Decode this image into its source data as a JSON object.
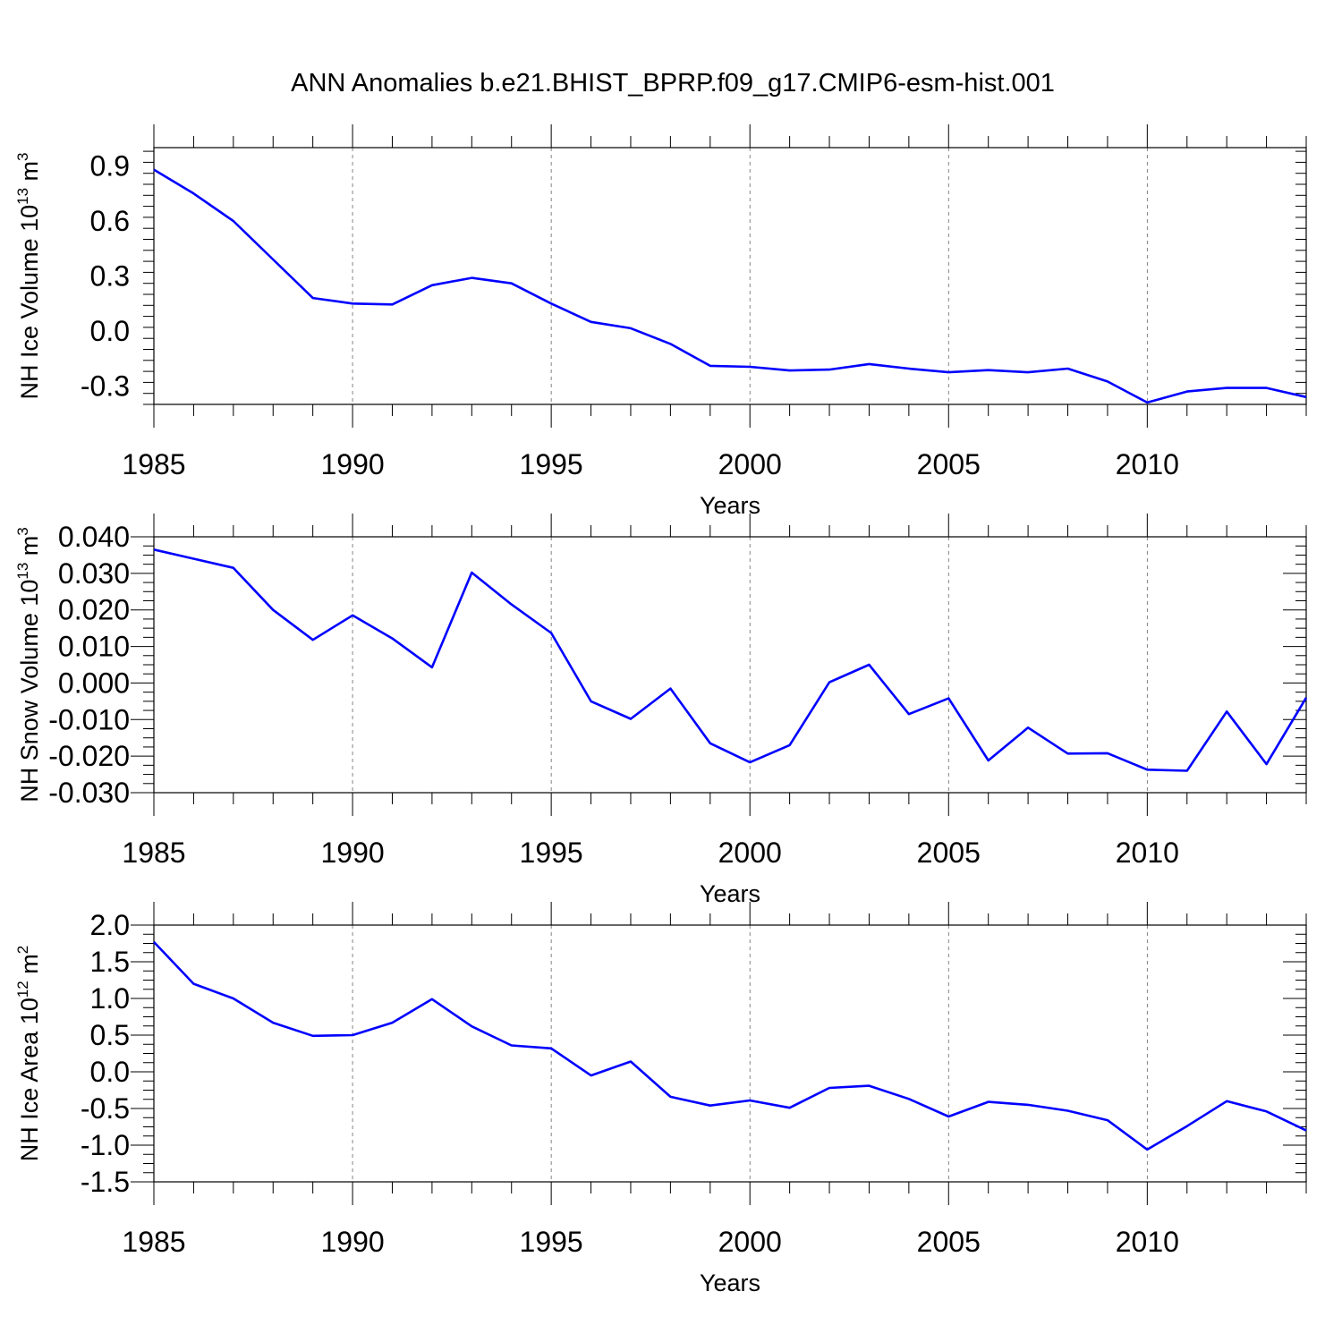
{
  "title": "ANN Anomalies b.e21.BHIST_BPRP.f09_g17.CMIP6-esm-hist.001",
  "colors": {
    "line": "#0000ff",
    "axis": "#000000",
    "grid": "#000000"
  },
  "chart_data": [
    {
      "type": "line",
      "ylabel_main": "NH Ice Volume 10",
      "ylabel_sup1": "13",
      "ylabel_mid": " m",
      "ylabel_sup2": "3",
      "xlabel": "Years",
      "xlim": [
        1985,
        2014
      ],
      "ylim": [
        -0.4,
        1.0
      ],
      "yticks": [
        0.9,
        0.6,
        0.3,
        0.0,
        -0.3
      ],
      "yticklabels": [
        "0.9",
        "0.6",
        "0.3",
        "0.0",
        "-0.3"
      ],
      "xticks": [
        1985,
        1990,
        1995,
        2000,
        2005,
        2010
      ],
      "xticklabels": [
        "1985",
        "1990",
        "1995",
        "2000",
        "2005",
        "2010"
      ],
      "x": [
        1985,
        1986,
        1987,
        1988,
        1989,
        1990,
        1991,
        1992,
        1993,
        1994,
        1995,
        1996,
        1997,
        1998,
        1999,
        2000,
        2001,
        2002,
        2003,
        2004,
        2005,
        2006,
        2007,
        2008,
        2009,
        2010,
        2011,
        2012,
        2013,
        2014
      ],
      "series": [
        {
          "name": "NH Ice Volume",
          "values": [
            0.88,
            0.75,
            0.6,
            0.39,
            0.18,
            0.15,
            0.145,
            0.25,
            0.29,
            0.26,
            0.15,
            0.05,
            0.015,
            -0.07,
            -0.19,
            -0.195,
            -0.215,
            -0.21,
            -0.18,
            -0.205,
            -0.225,
            -0.213,
            -0.225,
            -0.205,
            -0.275,
            -0.39,
            -0.33,
            -0.31,
            -0.31,
            -0.36
          ]
        }
      ]
    },
    {
      "type": "line",
      "ylabel_main": "NH Snow Volume 10",
      "ylabel_sup1": "13",
      "ylabel_mid": " m",
      "ylabel_sup2": "3",
      "xlabel": "Years",
      "xlim": [
        1985,
        2014
      ],
      "ylim": [
        -0.03,
        0.04
      ],
      "yticks": [
        0.04,
        0.03,
        0.02,
        0.01,
        0.0,
        -0.01,
        -0.02,
        -0.03
      ],
      "yticklabels": [
        "0.040",
        "0.030",
        "0.020",
        "0.010",
        "0.000",
        "-0.010",
        "-0.020",
        "-0.030"
      ],
      "xticks": [
        1985,
        1990,
        1995,
        2000,
        2005,
        2010
      ],
      "xticklabels": [
        "1985",
        "1990",
        "1995",
        "2000",
        "2005",
        "2010"
      ],
      "x": [
        1985,
        1986,
        1987,
        1988,
        1989,
        1990,
        1991,
        1992,
        1993,
        1994,
        1995,
        1996,
        1997,
        1998,
        1999,
        2000,
        2001,
        2002,
        2003,
        2004,
        2005,
        2006,
        2007,
        2008,
        2009,
        2010,
        2011,
        2012,
        2013,
        2014
      ],
      "series": [
        {
          "name": "NH Snow Volume",
          "values": [
            0.0365,
            0.034,
            0.0315,
            0.02,
            0.0118,
            0.0185,
            0.0122,
            0.0043,
            0.0302,
            0.0215,
            0.0137,
            -0.005,
            -0.0098,
            -0.0015,
            -0.0165,
            -0.0217,
            -0.017,
            0.0002,
            0.005,
            -0.0085,
            -0.0042,
            -0.0212,
            -0.0122,
            -0.0193,
            -0.0192,
            -0.0237,
            -0.024,
            -0.0078,
            -0.0222,
            -0.004
          ]
        }
      ]
    },
    {
      "type": "line",
      "ylabel_main": "NH Ice Area 10",
      "ylabel_sup1": "12",
      "ylabel_mid": " m",
      "ylabel_sup2": "2",
      "xlabel": "Years",
      "xlim": [
        1985,
        2014
      ],
      "ylim": [
        -1.5,
        2.0
      ],
      "yticks": [
        2.0,
        1.5,
        1.0,
        0.5,
        0.0,
        -0.5,
        -1.0,
        -1.5
      ],
      "yticklabels": [
        "2.0",
        "1.5",
        "1.0",
        "0.5",
        "0.0",
        "-0.5",
        "-1.0",
        "-1.5"
      ],
      "xticks": [
        1985,
        1990,
        1995,
        2000,
        2005,
        2010
      ],
      "xticklabels": [
        "1985",
        "1990",
        "1995",
        "2000",
        "2005",
        "2010"
      ],
      "x": [
        1985,
        1986,
        1987,
        1988,
        1989,
        1990,
        1991,
        1992,
        1993,
        1994,
        1995,
        1996,
        1997,
        1998,
        1999,
        2000,
        2001,
        2002,
        2003,
        2004,
        2005,
        2006,
        2007,
        2008,
        2009,
        2010,
        2011,
        2012,
        2013,
        2014
      ],
      "series": [
        {
          "name": "NH Ice Area",
          "values": [
            1.77,
            1.2,
            1.0,
            0.67,
            0.49,
            0.5,
            0.67,
            0.99,
            0.62,
            0.36,
            0.32,
            -0.05,
            0.14,
            -0.34,
            -0.46,
            -0.39,
            -0.49,
            -0.22,
            -0.19,
            -0.37,
            -0.61,
            -0.41,
            -0.45,
            -0.53,
            -0.66,
            -1.06,
            -0.74,
            -0.4,
            -0.54,
            -0.8
          ]
        }
      ]
    }
  ]
}
